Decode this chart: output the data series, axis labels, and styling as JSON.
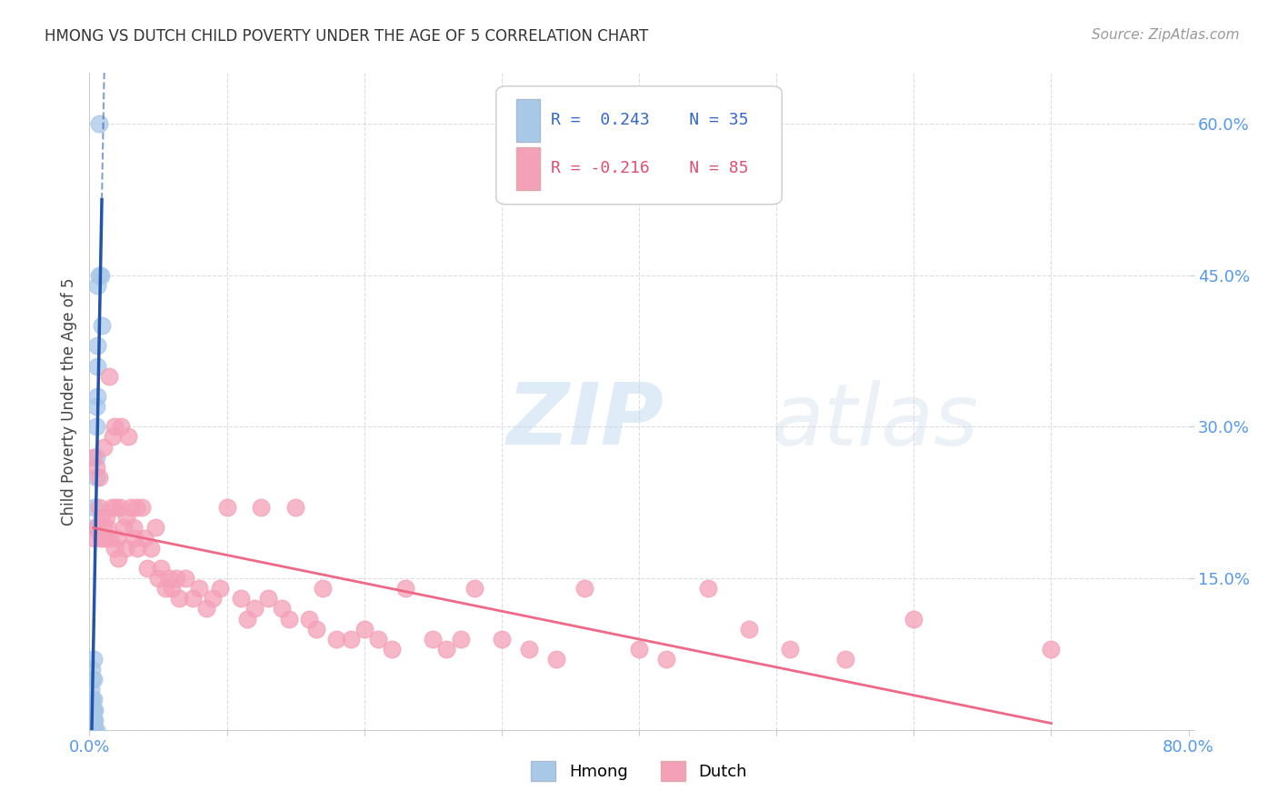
{
  "title": "HMONG VS DUTCH CHILD POVERTY UNDER THE AGE OF 5 CORRELATION CHART",
  "source": "Source: ZipAtlas.com",
  "ylabel": "Child Poverty Under the Age of 5",
  "xmin": 0.0,
  "xmax": 0.8,
  "ymin": 0.0,
  "ymax": 0.65,
  "xticks": [
    0.0,
    0.1,
    0.2,
    0.3,
    0.4,
    0.5,
    0.6,
    0.7,
    0.8
  ],
  "ytick_positions": [
    0.0,
    0.15,
    0.3,
    0.45,
    0.6
  ],
  "hmong_R": 0.243,
  "hmong_N": 35,
  "dutch_R": -0.216,
  "dutch_N": 85,
  "hmong_color": "#a8c8e8",
  "dutch_color": "#f4a0b8",
  "hmong_line_color": "#2255aa",
  "dutch_line_color": "#f06888",
  "background_color": "#ffffff",
  "grid_color": "#dddddd",
  "watermark_zip": "ZIP",
  "watermark_atlas": "atlas",
  "hmong_x": [
    0.001,
    0.001,
    0.001,
    0.001,
    0.001,
    0.002,
    0.002,
    0.002,
    0.002,
    0.002,
    0.002,
    0.003,
    0.003,
    0.003,
    0.003,
    0.003,
    0.003,
    0.004,
    0.004,
    0.004,
    0.004,
    0.004,
    0.005,
    0.005,
    0.005,
    0.005,
    0.005,
    0.006,
    0.006,
    0.006,
    0.006,
    0.007,
    0.007,
    0.008,
    0.009
  ],
  "hmong_y": [
    0.0,
    0.01,
    0.02,
    0.03,
    0.04,
    0.0,
    0.01,
    0.02,
    0.03,
    0.05,
    0.06,
    0.0,
    0.01,
    0.02,
    0.03,
    0.05,
    0.07,
    0.0,
    0.01,
    0.02,
    0.2,
    0.22,
    0.0,
    0.25,
    0.27,
    0.3,
    0.32,
    0.33,
    0.36,
    0.38,
    0.44,
    0.45,
    0.6,
    0.45,
    0.4
  ],
  "dutch_x": [
    0.003,
    0.004,
    0.005,
    0.006,
    0.007,
    0.007,
    0.008,
    0.009,
    0.01,
    0.01,
    0.011,
    0.012,
    0.013,
    0.014,
    0.015,
    0.016,
    0.017,
    0.018,
    0.018,
    0.019,
    0.02,
    0.021,
    0.022,
    0.023,
    0.025,
    0.026,
    0.027,
    0.028,
    0.03,
    0.032,
    0.033,
    0.034,
    0.035,
    0.038,
    0.04,
    0.042,
    0.045,
    0.048,
    0.05,
    0.052,
    0.055,
    0.058,
    0.06,
    0.063,
    0.065,
    0.07,
    0.075,
    0.08,
    0.085,
    0.09,
    0.095,
    0.1,
    0.11,
    0.115,
    0.12,
    0.125,
    0.13,
    0.14,
    0.145,
    0.15,
    0.16,
    0.165,
    0.17,
    0.18,
    0.19,
    0.2,
    0.21,
    0.22,
    0.23,
    0.25,
    0.26,
    0.27,
    0.28,
    0.3,
    0.32,
    0.34,
    0.36,
    0.4,
    0.42,
    0.45,
    0.48,
    0.51,
    0.55,
    0.6,
    0.7
  ],
  "dutch_y": [
    0.27,
    0.19,
    0.26,
    0.2,
    0.25,
    0.22,
    0.19,
    0.21,
    0.2,
    0.28,
    0.19,
    0.21,
    0.2,
    0.35,
    0.19,
    0.22,
    0.29,
    0.18,
    0.3,
    0.22,
    0.19,
    0.17,
    0.22,
    0.3,
    0.2,
    0.18,
    0.21,
    0.29,
    0.22,
    0.2,
    0.19,
    0.22,
    0.18,
    0.22,
    0.19,
    0.16,
    0.18,
    0.2,
    0.15,
    0.16,
    0.14,
    0.15,
    0.14,
    0.15,
    0.13,
    0.15,
    0.13,
    0.14,
    0.12,
    0.13,
    0.14,
    0.22,
    0.13,
    0.11,
    0.12,
    0.22,
    0.13,
    0.12,
    0.11,
    0.22,
    0.11,
    0.1,
    0.14,
    0.09,
    0.09,
    0.1,
    0.09,
    0.08,
    0.14,
    0.09,
    0.08,
    0.09,
    0.14,
    0.09,
    0.08,
    0.07,
    0.14,
    0.08,
    0.07,
    0.14,
    0.1,
    0.08,
    0.07,
    0.11,
    0.08
  ]
}
